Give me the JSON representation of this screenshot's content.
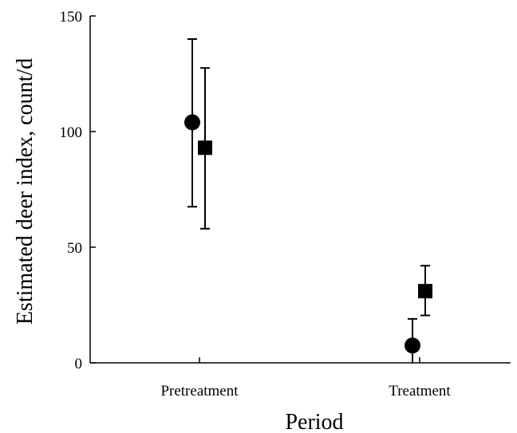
{
  "chart_data": {
    "type": "scatter",
    "title": "",
    "xlabel": "Period",
    "ylabel": "Estimated deer index, count/d",
    "categories": [
      "Pretreatment",
      "Treatment"
    ],
    "ylim": [
      0,
      150
    ],
    "yticks": [
      0,
      50,
      100,
      150
    ],
    "grid": false,
    "series": [
      {
        "marker": "circle",
        "values": [
          104,
          7.5
        ],
        "err_low": [
          67.5,
          0
        ],
        "err_high": [
          140,
          19
        ]
      },
      {
        "marker": "square",
        "values": [
          93,
          31
        ],
        "err_low": [
          58,
          20.5
        ],
        "err_high": [
          127.5,
          42
        ]
      }
    ]
  }
}
